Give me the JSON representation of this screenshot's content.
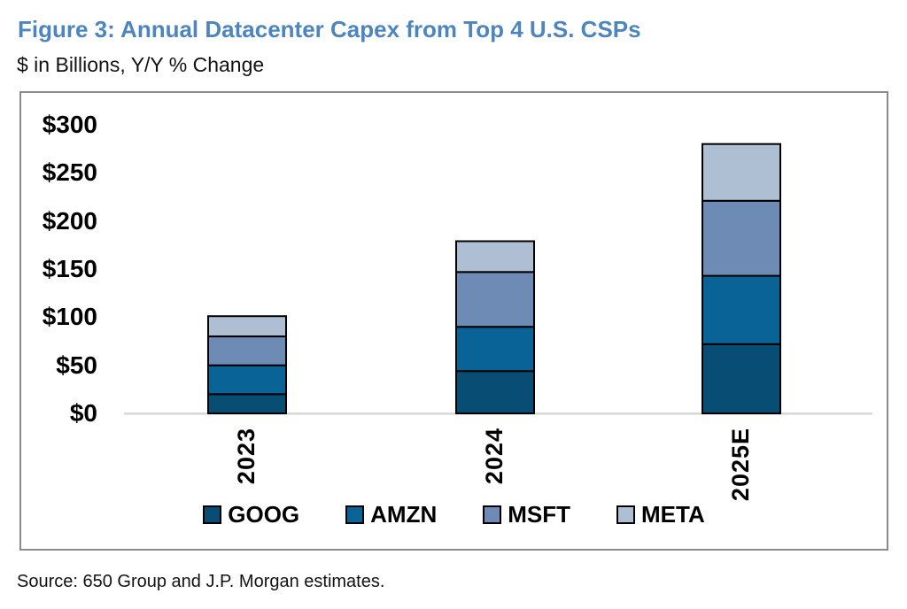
{
  "figure": {
    "title": "Figure 3: Annual Datacenter Capex from Top 4 U.S. CSPs",
    "subtitle": "$ in Billions, Y/Y % Change",
    "source": "Source: 650 Group and J.P. Morgan estimates."
  },
  "colors": {
    "title_blue": "#4D86BF",
    "chart_border": "#8A8A8A",
    "axis_line": "#D9D9D9",
    "bar_border": "#000000"
  },
  "chart_data": {
    "type": "bar",
    "stacked": true,
    "title": "Figure 3: Annual Datacenter Capex from Top 4 U.S. CSPs",
    "subtitle": "$ in Billions, Y/Y % Change",
    "categories": [
      "2023",
      "2024",
      "2025E"
    ],
    "series": [
      {
        "name": "GOOG",
        "color": "#084E74",
        "values": [
          20,
          44,
          72
        ]
      },
      {
        "name": "AMZN",
        "color": "#0A6397",
        "values": [
          30,
          46,
          71
        ]
      },
      {
        "name": "MSFT",
        "color": "#6D8BB5",
        "values": [
          30,
          57,
          78
        ]
      },
      {
        "name": "META",
        "color": "#AFBFD3",
        "values": [
          21,
          32,
          59
        ]
      }
    ],
    "totals": [
      101,
      179,
      280
    ],
    "xlabel": "",
    "ylabel": "$ in Billions",
    "ylim": [
      0,
      300
    ],
    "y_tick_values": [
      300,
      250,
      200,
      150,
      100,
      50,
      0
    ],
    "y_tick_labels": [
      "$300",
      "$250",
      "$200",
      "$150",
      "$100",
      "$50",
      "$0"
    ],
    "grid": false,
    "legend": [
      "GOOG",
      "AMZN",
      "MSFT",
      "META"
    ],
    "legend_position": "bottom"
  }
}
